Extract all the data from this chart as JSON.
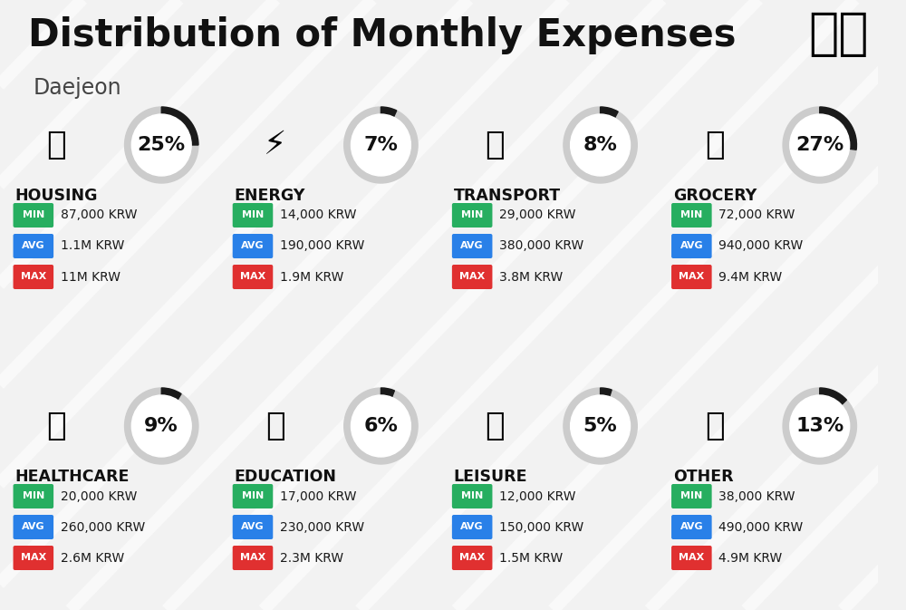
{
  "title": "Distribution of Monthly Expenses",
  "subtitle": "Daejeon",
  "background_color": "#f2f2f2",
  "categories": [
    {
      "name": "HOUSING",
      "pct": 25,
      "min": "87,000 KRW",
      "avg": "1.1M KRW",
      "max": "11M KRW",
      "col": 0,
      "row": 0
    },
    {
      "name": "ENERGY",
      "pct": 7,
      "min": "14,000 KRW",
      "avg": "190,000 KRW",
      "max": "1.9M KRW",
      "col": 1,
      "row": 0
    },
    {
      "name": "TRANSPORT",
      "pct": 8,
      "min": "29,000 KRW",
      "avg": "380,000 KRW",
      "max": "3.8M KRW",
      "col": 2,
      "row": 0
    },
    {
      "name": "GROCERY",
      "pct": 27,
      "min": "72,000 KRW",
      "avg": "940,000 KRW",
      "max": "9.4M KRW",
      "col": 3,
      "row": 0
    },
    {
      "name": "HEALTHCARE",
      "pct": 9,
      "min": "20,000 KRW",
      "avg": "260,000 KRW",
      "max": "2.6M KRW",
      "col": 0,
      "row": 1
    },
    {
      "name": "EDUCATION",
      "pct": 6,
      "min": "17,000 KRW",
      "avg": "230,000 KRW",
      "max": "2.3M KRW",
      "col": 1,
      "row": 1
    },
    {
      "name": "LEISURE",
      "pct": 5,
      "min": "12,000 KRW",
      "avg": "150,000 KRW",
      "max": "1.5M KRW",
      "col": 2,
      "row": 1
    },
    {
      "name": "OTHER",
      "pct": 13,
      "min": "38,000 KRW",
      "avg": "490,000 KRW",
      "max": "4.9M KRW",
      "col": 3,
      "row": 1
    }
  ],
  "min_color": "#27ae60",
  "avg_color": "#2980e8",
  "max_color": "#e03030",
  "arc_color": "#1a1a1a",
  "arc_bg_color": "#cccccc",
  "title_fontsize": 30,
  "subtitle_fontsize": 17,
  "pct_fontsize": 16,
  "val_fontsize": 10,
  "cat_fontsize": 12.5
}
